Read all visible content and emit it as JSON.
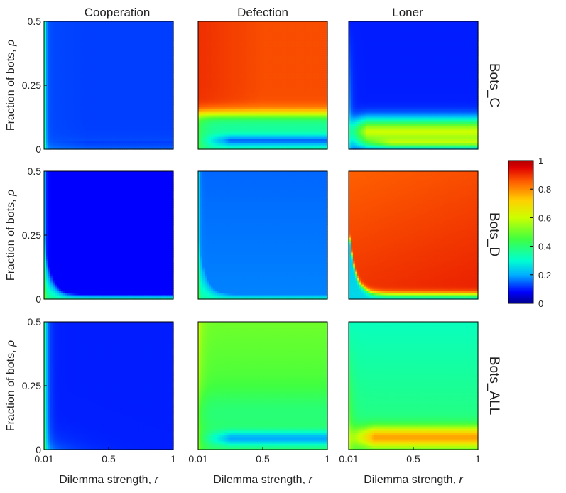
{
  "chart_data": {
    "type": "heatmap",
    "columns": [
      "Cooperation",
      "Defection",
      "Loner"
    ],
    "rows": [
      "Bots_C",
      "Bots_D",
      "Bots_ALL"
    ],
    "xlabel_prefix": "Dilemma strength, ",
    "xlabel_var": "r",
    "ylabel_prefix": "Fraction of bots, ",
    "ylabel_var": "ρ",
    "xlim": [
      0.01,
      1
    ],
    "ylim": [
      0,
      0.5
    ],
    "x_ticks": [
      "0.01",
      "0.5",
      "1"
    ],
    "y_ticks": [
      "0",
      "0.25",
      "0.5"
    ],
    "colorbar": {
      "range": [
        0,
        1
      ],
      "ticks": [
        "0",
        "0.2",
        "0.4",
        "0.6",
        "0.8",
        "1"
      ],
      "colormap": [
        "#00008f",
        "#0000ff",
        "#00b0ff",
        "#00ffd0",
        "#40ff40",
        "#ccff00",
        "#ffd000",
        "#ff6000",
        "#e00000",
        "#b00000"
      ]
    },
    "panels": [
      {
        "row": "Bots_C",
        "column": "Cooperation",
        "description": "low fraction everywhere (~0.1-0.2), slightly higher near r = 0.01"
      },
      {
        "row": "Bots_C",
        "column": "Defection",
        "description": "high (~0.9) above rho ~ 0.15, drops to ~0.4 then ~0.2 near rho = 0"
      },
      {
        "row": "Bots_C",
        "column": "Loner",
        "description": "low (~0.1) above rho ~ 0.2, peaks ~0.8 near rho ~ 0.02"
      },
      {
        "row": "Bots_D",
        "column": "Cooperation",
        "description": "near 0 everywhere except a thin band near rho = 0 and r = 0.01"
      },
      {
        "row": "Bots_D",
        "column": "Defection",
        "description": "~0.15-0.2 across the panel, lighter band near the origin"
      },
      {
        "row": "Bots_D",
        "column": "Loner",
        "description": "~0.85-0.95 above a boundary curve, low near rho = 0"
      },
      {
        "row": "Bots_ALL",
        "column": "Cooperation",
        "description": "near 0.1 everywhere, higher near r = 0.01"
      },
      {
        "row": "Bots_ALL",
        "column": "Defection",
        "description": "~0.45-0.5 for high rho, dip to ~0.2 around rho ~ 0.05"
      },
      {
        "row": "Bots_ALL",
        "column": "Loner",
        "description": "~0.4 for high rho, peaks ~0.8 around rho ~ 0.05"
      }
    ]
  }
}
